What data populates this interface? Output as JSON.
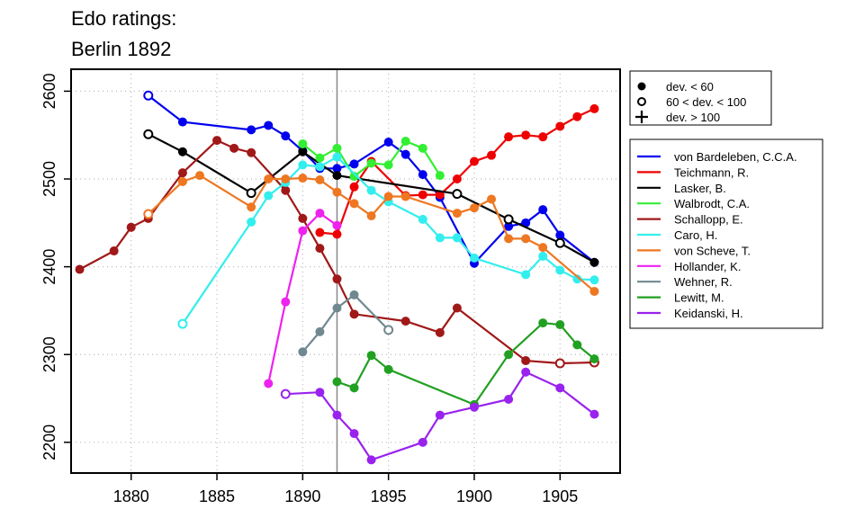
{
  "chart_data": {
    "type": "line",
    "title": [
      "Edo ratings:",
      "Berlin 1892"
    ],
    "xlabel": "",
    "ylabel": "",
    "xlim": [
      1876.5,
      1908.5
    ],
    "ylim": [
      2165,
      2625
    ],
    "x_ticks": [
      1880,
      1885,
      1890,
      1895,
      1900,
      1905
    ],
    "y_ticks": [
      2200,
      2300,
      2400,
      2500,
      2600
    ],
    "grid": true,
    "reference_line_x": 1892,
    "marker_legend": {
      "placement": "top-right",
      "entries": [
        {
          "symbol": "filled-circle",
          "label": "dev. < 60"
        },
        {
          "symbol": "open-circle",
          "label": "60 < dev. < 100"
        },
        {
          "symbol": "plus",
          "label": "dev. > 100"
        }
      ]
    },
    "legend": "right",
    "series": [
      {
        "name": "von Bardeleben, C.C.A.",
        "color": "#0000ee",
        "points": [
          [
            1881,
            2595,
            "o"
          ],
          [
            1883,
            2565,
            "f"
          ],
          [
            1887,
            2556,
            "f"
          ],
          [
            1888,
            2561,
            "f"
          ],
          [
            1889,
            2549,
            "f"
          ],
          [
            1890,
            2532,
            "f"
          ],
          [
            1891,
            2512,
            "f"
          ],
          [
            1892,
            2512,
            "f"
          ],
          [
            1893,
            2517,
            "f"
          ],
          [
            1895,
            2542,
            "f"
          ],
          [
            1896,
            2528,
            "f"
          ],
          [
            1897,
            2505,
            "f"
          ],
          [
            1898,
            2479,
            "f"
          ],
          [
            1900,
            2404,
            "f"
          ],
          [
            1902,
            2446,
            "f"
          ],
          [
            1903,
            2450,
            "f"
          ],
          [
            1904,
            2465,
            "f"
          ],
          [
            1905,
            2436,
            "f"
          ],
          [
            1907,
            2405,
            "f"
          ]
        ]
      },
      {
        "name": "Teichmann, R.",
        "color": "#ee0000",
        "points": [
          [
            1891,
            2439,
            "f"
          ],
          [
            1892,
            2437,
            "f"
          ],
          [
            1893,
            2491,
            "f"
          ],
          [
            1894,
            2520,
            "f"
          ],
          [
            1896,
            2481,
            "f"
          ],
          [
            1897,
            2482,
            "f"
          ],
          [
            1898,
            2482,
            "f"
          ],
          [
            1899,
            2500,
            "f"
          ],
          [
            1900,
            2520,
            "f"
          ],
          [
            1901,
            2527,
            "f"
          ],
          [
            1902,
            2548,
            "f"
          ],
          [
            1903,
            2550,
            "f"
          ],
          [
            1904,
            2548,
            "f"
          ],
          [
            1905,
            2560,
            "f"
          ],
          [
            1906,
            2571,
            "f"
          ],
          [
            1907,
            2580,
            "f"
          ]
        ]
      },
      {
        "name": "Lasker, B.",
        "color": "#000000",
        "points": [
          [
            1881,
            2551,
            "o"
          ],
          [
            1883,
            2531,
            "f"
          ],
          [
            1887,
            2484,
            "o"
          ],
          [
            1890,
            2531,
            "f"
          ],
          [
            1892,
            2504,
            "f"
          ],
          [
            1899,
            2483,
            "o"
          ],
          [
            1902,
            2454,
            "o"
          ],
          [
            1905,
            2427,
            "o"
          ],
          [
            1907,
            2405,
            "f"
          ]
        ]
      },
      {
        "name": "Walbrodt, C.A.",
        "color": "#33ee33",
        "points": [
          [
            1890,
            2540,
            "f"
          ],
          [
            1891,
            2524,
            "f"
          ],
          [
            1892,
            2535,
            "f"
          ],
          [
            1893,
            2503,
            "f"
          ],
          [
            1894,
            2518,
            "f"
          ],
          [
            1895,
            2516,
            "f"
          ],
          [
            1896,
            2543,
            "f"
          ],
          [
            1897,
            2535,
            "f"
          ],
          [
            1898,
            2504,
            "f"
          ]
        ]
      },
      {
        "name": "Schallopp, E.",
        "color": "#a01818",
        "points": [
          [
            1877,
            2397,
            "f"
          ],
          [
            1879,
            2418,
            "f"
          ],
          [
            1880,
            2445,
            "f"
          ],
          [
            1881,
            2455,
            "f"
          ],
          [
            1883,
            2507,
            "f"
          ],
          [
            1885,
            2544,
            "f"
          ],
          [
            1886,
            2535,
            "f"
          ],
          [
            1887,
            2530,
            "f"
          ],
          [
            1889,
            2487,
            "f"
          ],
          [
            1890,
            2455,
            "f"
          ],
          [
            1891,
            2421,
            "f"
          ],
          [
            1892,
            2386,
            "f"
          ],
          [
            1893,
            2346,
            "f"
          ],
          [
            1896,
            2338,
            "f"
          ],
          [
            1898,
            2325,
            "f"
          ],
          [
            1899,
            2353,
            "f"
          ],
          [
            1903,
            2293,
            "f"
          ],
          [
            1905,
            2290,
            "o"
          ],
          [
            1907,
            2291,
            "o"
          ]
        ]
      },
      {
        "name": "Caro, H.",
        "color": "#33eeee",
        "points": [
          [
            1883,
            2335,
            "o"
          ],
          [
            1887,
            2451,
            "f"
          ],
          [
            1888,
            2481,
            "f"
          ],
          [
            1889,
            2496,
            "f"
          ],
          [
            1890,
            2516,
            "f"
          ],
          [
            1891,
            2514,
            "f"
          ],
          [
            1892,
            2525,
            "f"
          ],
          [
            1894,
            2487,
            "f"
          ],
          [
            1895,
            2474,
            "f"
          ],
          [
            1897,
            2454,
            "f"
          ],
          [
            1898,
            2433,
            "f"
          ],
          [
            1899,
            2433,
            "f"
          ],
          [
            1900,
            2410,
            "f"
          ],
          [
            1903,
            2391,
            "f"
          ],
          [
            1904,
            2412,
            "f"
          ],
          [
            1905,
            2396,
            "f"
          ],
          [
            1906,
            2386,
            "f"
          ],
          [
            1907,
            2385,
            "f"
          ]
        ]
      },
      {
        "name": "von Scheve, T.",
        "color": "#ee7722",
        "points": [
          [
            1881,
            2460,
            "o"
          ],
          [
            1883,
            2497,
            "f"
          ],
          [
            1884,
            2504,
            "f"
          ],
          [
            1887,
            2468,
            "f"
          ],
          [
            1888,
            2500,
            "f"
          ],
          [
            1889,
            2500,
            "f"
          ],
          [
            1890,
            2501,
            "f"
          ],
          [
            1891,
            2499,
            "f"
          ],
          [
            1892,
            2485,
            "f"
          ],
          [
            1893,
            2472,
            "f"
          ],
          [
            1894,
            2458,
            "f"
          ],
          [
            1895,
            2480,
            "f"
          ],
          [
            1896,
            2480,
            "f"
          ],
          [
            1899,
            2461,
            "f"
          ],
          [
            1900,
            2467,
            "f"
          ],
          [
            1901,
            2477,
            "f"
          ],
          [
            1902,
            2432,
            "f"
          ],
          [
            1903,
            2432,
            "f"
          ],
          [
            1904,
            2422,
            "f"
          ],
          [
            1907,
            2372,
            "f"
          ]
        ]
      },
      {
        "name": "Hollander, K.",
        "color": "#ee22ee",
        "points": [
          [
            1888,
            2267,
            "f"
          ],
          [
            1889,
            2360,
            "f"
          ],
          [
            1890,
            2441,
            "f"
          ],
          [
            1891,
            2461,
            "f"
          ],
          [
            1892,
            2447,
            "f"
          ]
        ]
      },
      {
        "name": "Wehner, R.",
        "color": "#708890",
        "points": [
          [
            1890,
            2303,
            "f"
          ],
          [
            1891,
            2326,
            "f"
          ],
          [
            1892,
            2353,
            "f"
          ],
          [
            1893,
            2368,
            "f"
          ],
          [
            1895,
            2328,
            "o"
          ]
        ]
      },
      {
        "name": "Lewitt, M.",
        "color": "#22a022",
        "points": [
          [
            1892,
            2269,
            "f"
          ],
          [
            1893,
            2262,
            "f"
          ],
          [
            1894,
            2299,
            "f"
          ],
          [
            1895,
            2283,
            "f"
          ],
          [
            1900,
            2243,
            "f"
          ],
          [
            1902,
            2300,
            "f"
          ],
          [
            1904,
            2336,
            "f"
          ],
          [
            1905,
            2334,
            "f"
          ],
          [
            1906,
            2311,
            "f"
          ],
          [
            1907,
            2295,
            "f"
          ]
        ]
      },
      {
        "name": "Keidanski, H.",
        "color": "#9922ee",
        "points": [
          [
            1889,
            2255,
            "o"
          ],
          [
            1891,
            2257,
            "f"
          ],
          [
            1892,
            2231,
            "f"
          ],
          [
            1893,
            2210,
            "f"
          ],
          [
            1894,
            2180,
            "f"
          ],
          [
            1897,
            2200,
            "f"
          ],
          [
            1898,
            2231,
            "f"
          ],
          [
            1900,
            2240,
            "f"
          ],
          [
            1902,
            2249,
            "f"
          ],
          [
            1903,
            2280,
            "f"
          ],
          [
            1905,
            2262,
            "f"
          ],
          [
            1907,
            2232,
            "f"
          ]
        ]
      }
    ]
  }
}
